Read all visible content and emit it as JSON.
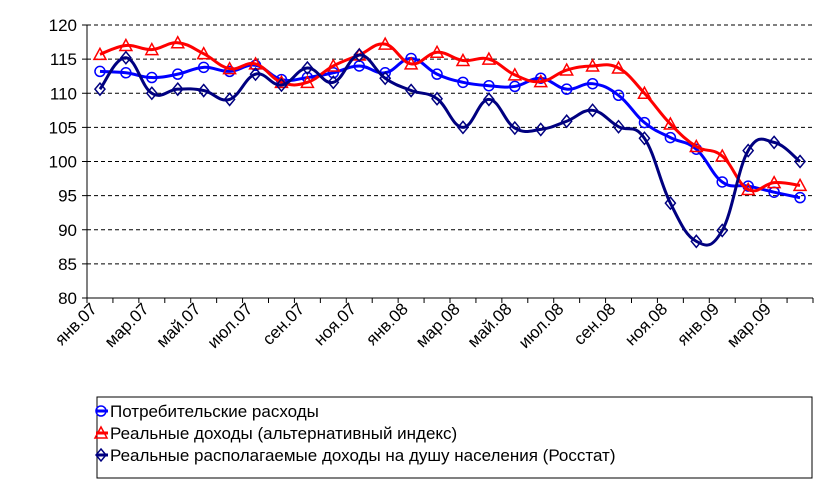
{
  "chart_data": {
    "type": "line",
    "categories": [
      "янв.07",
      null,
      "мар.07",
      null,
      "май.07",
      null,
      "июл.07",
      null,
      "сен.07",
      null,
      "ноя.07",
      null,
      "янв.08",
      null,
      "мар.08",
      null,
      "май.08",
      null,
      "июл.08",
      null,
      "сен.08",
      null,
      "ноя.08",
      null,
      "янв.09",
      null,
      "мар.09",
      null
    ],
    "series": [
      {
        "name": "Потребительские расходы",
        "color": "#0000ff",
        "marker": "circle",
        "values": [
          113.2,
          113.0,
          112.3,
          112.8,
          113.8,
          113.2,
          114.1,
          112.0,
          112.3,
          113.0,
          114.0,
          113.0,
          115.1,
          112.8,
          111.6,
          111.1,
          111.0,
          112.2,
          110.6,
          111.4,
          109.7,
          105.7,
          103.5,
          101.8,
          97.0,
          96.4,
          95.5,
          94.7
        ]
      },
      {
        "name": "Реальные доходы (альтернативный индекс)",
        "color": "#ff0000",
        "marker": "triangle",
        "values": [
          115.7,
          117.0,
          116.4,
          117.4,
          115.8,
          113.6,
          114.3,
          111.6,
          111.6,
          114.0,
          115.6,
          117.2,
          114.3,
          116.0,
          114.8,
          115.0,
          112.7,
          111.7,
          113.4,
          114.0,
          113.7,
          110.0,
          105.5,
          102.2,
          100.8,
          95.9,
          96.9,
          96.5
        ]
      },
      {
        "name": "Реальные располагаемые доходы на душу населения (Росстат)",
        "color": "#000080",
        "marker": "diamond",
        "values": [
          110.6,
          115.2,
          110.0,
          110.6,
          110.4,
          109.1,
          112.8,
          111.2,
          113.7,
          111.6,
          115.6,
          112.2,
          110.4,
          109.2,
          105.0,
          109.1,
          104.9,
          104.7,
          105.9,
          107.5,
          105.1,
          103.4,
          93.9,
          88.3,
          89.9,
          101.6,
          102.8,
          100.0
        ]
      }
    ],
    "ylim": [
      80,
      120
    ],
    "yticks": [
      80,
      85,
      90,
      95,
      100,
      105,
      110,
      115,
      120
    ],
    "grid": true
  }
}
